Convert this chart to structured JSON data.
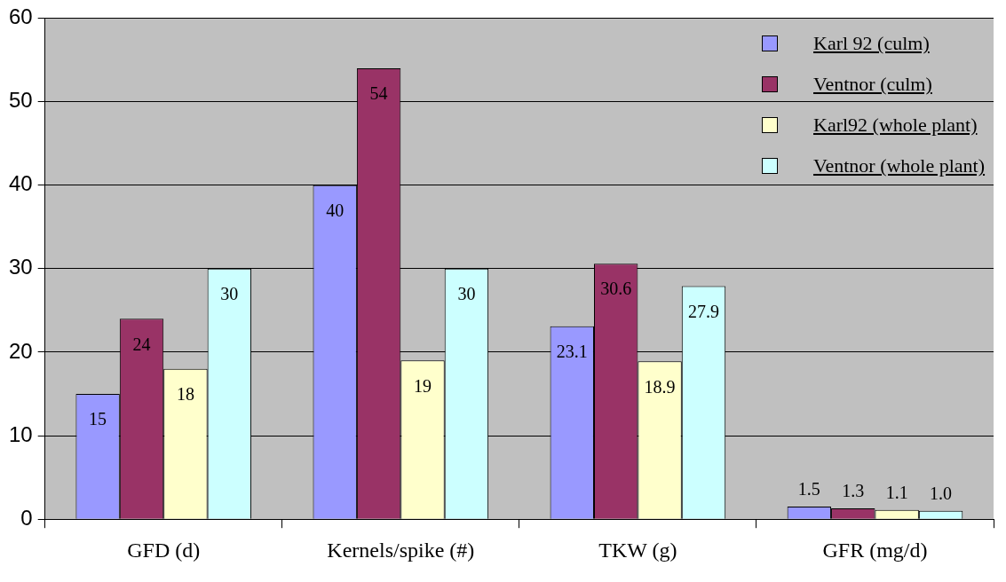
{
  "chart_data": {
    "type": "bar",
    "categories": [
      "GFD (d)",
      "Kernels/spike (#)",
      "TKW (g)",
      "GFR (mg/d)"
    ],
    "series": [
      {
        "name": "Karl 92 (culm)",
        "color": "#9999ff",
        "values": [
          15,
          40,
          23.1,
          1.5
        ],
        "value_labels": [
          "15",
          "40",
          "23.1",
          "1.5"
        ]
      },
      {
        "name": "Ventnor (culm)",
        "color": "#993366",
        "values": [
          24,
          54,
          30.6,
          1.3
        ],
        "value_labels": [
          "24",
          "54",
          "30.6",
          "1.3"
        ]
      },
      {
        "name": "Karl92 (whole plant)",
        "color": "#ffffcc",
        "values": [
          18,
          19,
          18.9,
          1.1
        ],
        "value_labels": [
          "18",
          "19",
          "18.9",
          "1.1"
        ]
      },
      {
        "name": "Ventnor (whole plant)",
        "color": "#ccffff",
        "values": [
          30,
          30,
          27.9,
          1.0
        ],
        "value_labels": [
          "30",
          "30",
          "27.9",
          "1.0"
        ]
      }
    ],
    "ylim": [
      0,
      60
    ],
    "yticks": [
      0,
      10,
      20,
      30,
      40,
      50,
      60
    ],
    "grid": "y",
    "legend": "top right"
  }
}
